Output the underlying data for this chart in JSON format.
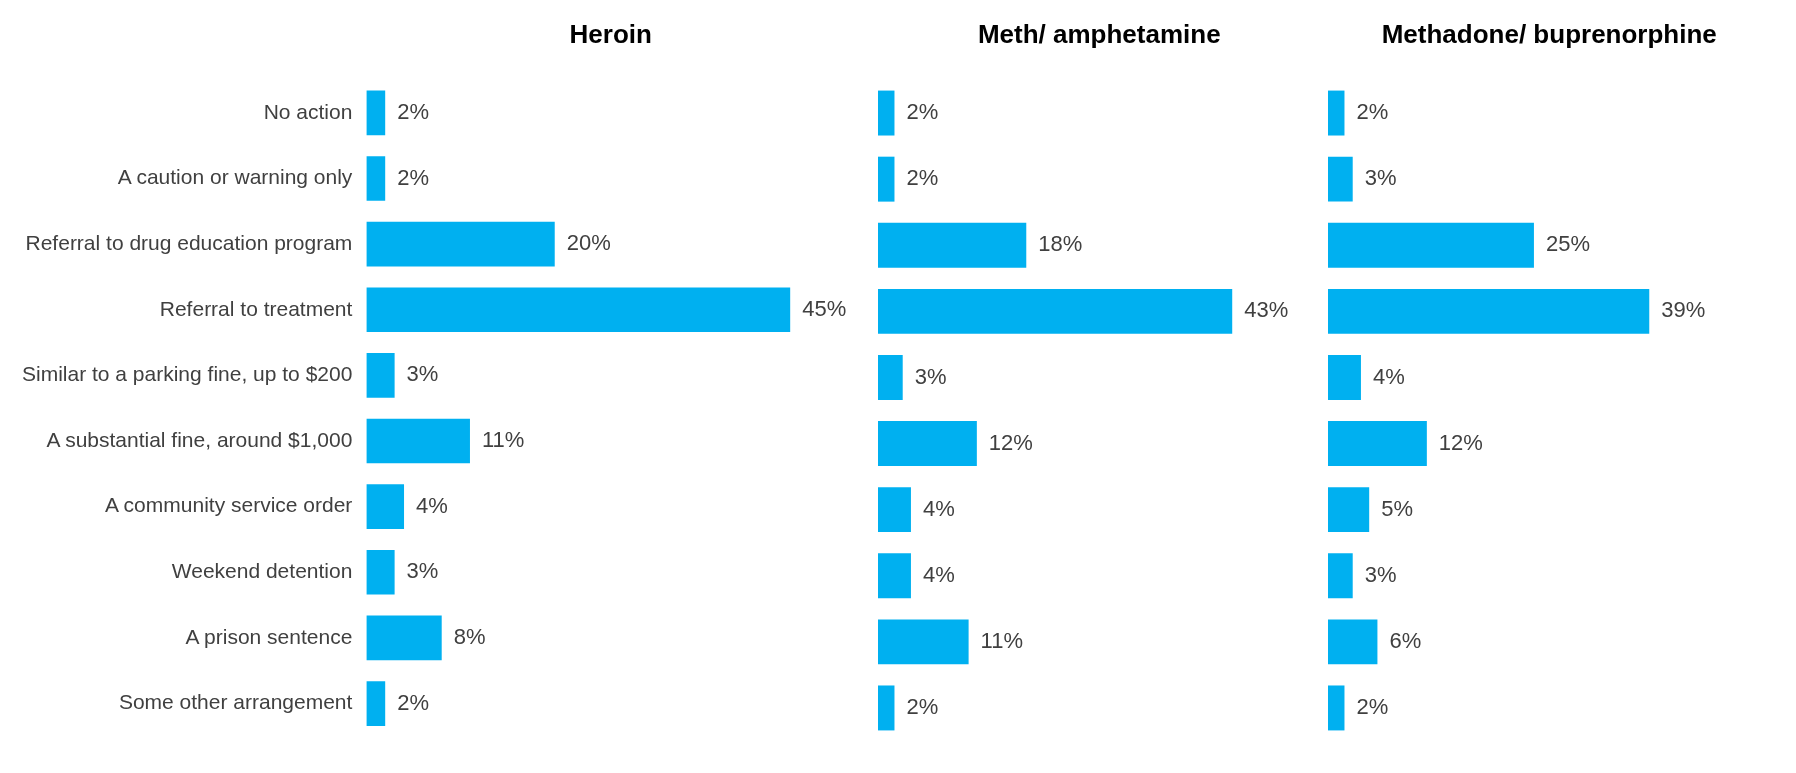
{
  "chart_data": [
    {
      "type": "bar",
      "orientation": "horizontal",
      "title": "Heroin",
      "tick_labels": "y",
      "categories": [
        "No action",
        "A caution or warning only",
        "Referral to drug education program",
        "Referral to treatment",
        "Similar to a parking fine, up to $200",
        "A substantial fine, around $1,000",
        "A community service order",
        "Weekend detention",
        "A prison sentence",
        "Some other arrangement"
      ],
      "color": "#00b0f0",
      "values": [
        2,
        2,
        20,
        45,
        3,
        11,
        4,
        3,
        8,
        2
      ],
      "value_labels": [
        "2%",
        "2%",
        "20%",
        "45%",
        "3%",
        "11%",
        "4%",
        "3%",
        "8%",
        "2%"
      ]
    },
    {
      "type": "bar",
      "orientation": "horizontal",
      "title": "Meth/ amphetamine",
      "tick_labels": false,
      "categories": [
        null,
        null,
        null,
        null,
        null,
        null,
        null,
        null,
        null,
        null
      ],
      "color": "#00b0f0",
      "values": [
        2,
        2,
        18,
        43,
        3,
        12,
        4,
        4,
        11,
        2
      ],
      "value_labels": [
        "2%",
        "2%",
        "18%",
        "43%",
        "3%",
        "12%",
        "4%",
        "4%",
        "11%",
        "2%"
      ]
    },
    {
      "type": "bar",
      "orientation": "horizontal",
      "title": "Methadone/ buprenorphine",
      "tick_labels": false,
      "categories": [
        null,
        null,
        null,
        null,
        null,
        null,
        null,
        null,
        null,
        null
      ],
      "color": "#00b0f0",
      "values": [
        2,
        3,
        25,
        39,
        4,
        12,
        5,
        3,
        6,
        2
      ],
      "value_labels": [
        "2%",
        "3%",
        "25%",
        "39%",
        "4%",
        "12%",
        "5%",
        "3%",
        "6%",
        "2%"
      ]
    }
  ]
}
